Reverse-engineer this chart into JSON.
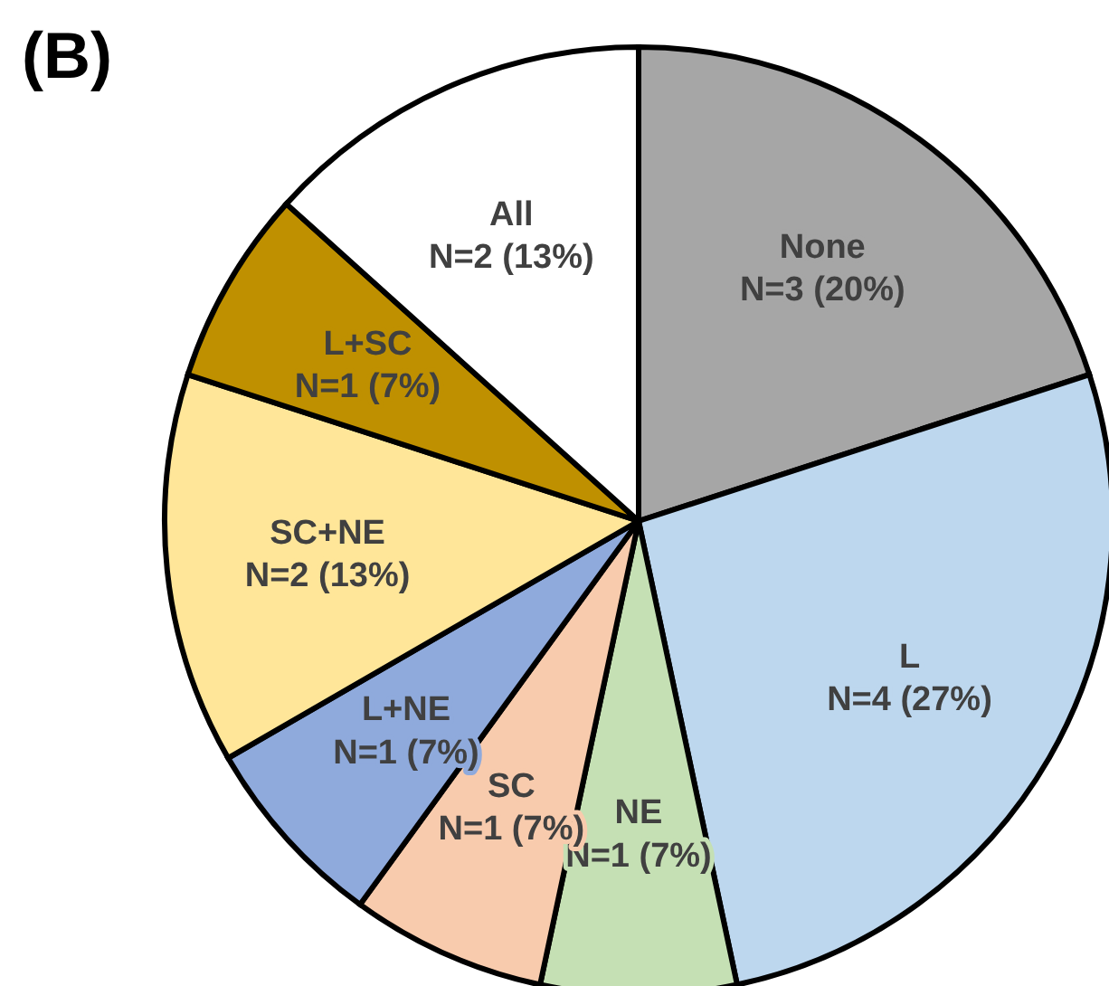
{
  "chart_data": {
    "type": "pie",
    "title": "(B)",
    "categories": [
      "None",
      "L",
      "NE",
      "SC",
      "L+NE",
      "SC+NE",
      "L+SC",
      "All"
    ],
    "values": [
      3,
      4,
      1,
      1,
      1,
      2,
      1,
      2
    ],
    "value_labels": [
      "N=3 (20%)",
      "N=4 (27%)",
      "N=1 (7%)",
      "N=1 (7%)",
      "N=1 (7%)",
      "N=2 (13%)",
      "N=1 (7%)",
      "N=2 (13%)"
    ],
    "colors": [
      "#a6a6a6",
      "#bdd7ee",
      "#c5e0b4",
      "#f8cbad",
      "#8faadc",
      "#ffe699",
      "#bf9000",
      "#ffffff"
    ]
  }
}
